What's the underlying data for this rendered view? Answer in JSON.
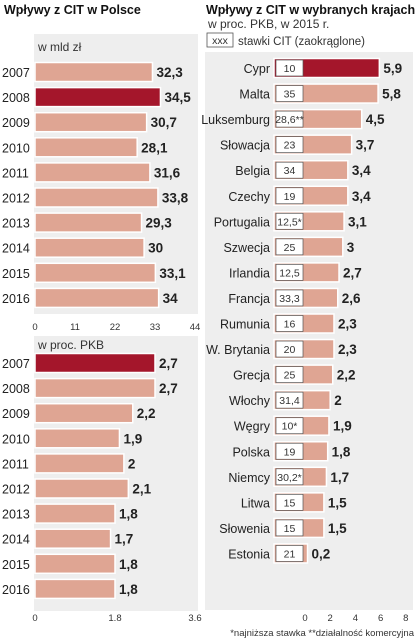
{
  "colors": {
    "bar": "#dfa593",
    "highlight": "#a4162b",
    "panel": "#eeeeee",
    "bar_outline": "#ffffff"
  },
  "chart_data": [
    {
      "type": "bar",
      "title": "Wpływy z CIT w Polsce",
      "subtitle": "w mld zł",
      "categories": [
        "2007",
        "2008",
        "2009",
        "2010",
        "2011",
        "2012",
        "2013",
        "2014",
        "2015",
        "2016"
      ],
      "values": [
        32.3,
        34.5,
        30.7,
        28.1,
        31.6,
        33.8,
        29.3,
        30,
        33.1,
        34
      ],
      "value_labels": [
        "32,3",
        "34,5",
        "30,7",
        "28,1",
        "31,6",
        "33,8",
        "29,3",
        "30",
        "33,1",
        "34"
      ],
      "highlight": "2008",
      "xlim": [
        0,
        44
      ],
      "xticks": [
        "0",
        "11",
        "22",
        "33",
        "44"
      ]
    },
    {
      "type": "bar",
      "subtitle": "w proc. PKB",
      "categories": [
        "2007",
        "2008",
        "2009",
        "2010",
        "2011",
        "2012",
        "2013",
        "2014",
        "2015",
        "2016"
      ],
      "values": [
        2.7,
        2.7,
        2.2,
        1.9,
        2,
        2.1,
        1.8,
        1.7,
        1.8,
        1.8
      ],
      "value_labels": [
        "2,7",
        "2,7",
        "2,2",
        "1,9",
        "2",
        "2,1",
        "1,8",
        "1,7",
        "1,8",
        "1,8"
      ],
      "highlight": "2007",
      "xlim": [
        0,
        3.6
      ],
      "xticks": [
        "0",
        "1.8",
        "3.6"
      ]
    },
    {
      "type": "bar",
      "title": "Wpływy z CIT w wybranych krajach UE",
      "subtitle": "w proc. PKB, w 2015 r.",
      "legend": {
        "swatch": "xxx",
        "label": "stawki CIT (zaokrąglone)"
      },
      "categories": [
        "Cypr",
        "Malta",
        "Luksemburg",
        "Słowacja",
        "Belgia",
        "Czechy",
        "Portugalia",
        "Szwecja",
        "Irlandia",
        "Francja",
        "Rumunia",
        "W. Brytania",
        "Grecja",
        "Włochy",
        "Węgry",
        "Polska",
        "Niemcy",
        "Litwa",
        "Słowenia",
        "Estonia"
      ],
      "values": [
        5.9,
        5.8,
        4.5,
        3.7,
        3.4,
        3.4,
        3.1,
        3,
        2.7,
        2.6,
        2.3,
        2.3,
        2.2,
        2,
        1.9,
        1.8,
        1.7,
        1.5,
        1.5,
        0.2
      ],
      "value_labels": [
        "5,9",
        "5,8",
        "4,5",
        "3,7",
        "3,4",
        "3,4",
        "3,1",
        "3",
        "2,7",
        "2,6",
        "2,3",
        "2,3",
        "2,2",
        "2",
        "1,9",
        "1,8",
        "1,7",
        "1,5",
        "1,5",
        "0,2"
      ],
      "cit_rates": [
        "10",
        "35",
        "28,6**",
        "23",
        "34",
        "19",
        "12,5*",
        "25",
        "12,5",
        "33,3",
        "16",
        "20",
        "25",
        "31,4",
        "10*",
        "19",
        "30,2*",
        "15",
        "15",
        "21"
      ],
      "highlight": "Cypr",
      "xlim": [
        0,
        8
      ],
      "xticks": [
        "0",
        "2",
        "4",
        "6",
        "8"
      ],
      "footnote": "*najniższa stawka **działalność komercyjna"
    }
  ]
}
